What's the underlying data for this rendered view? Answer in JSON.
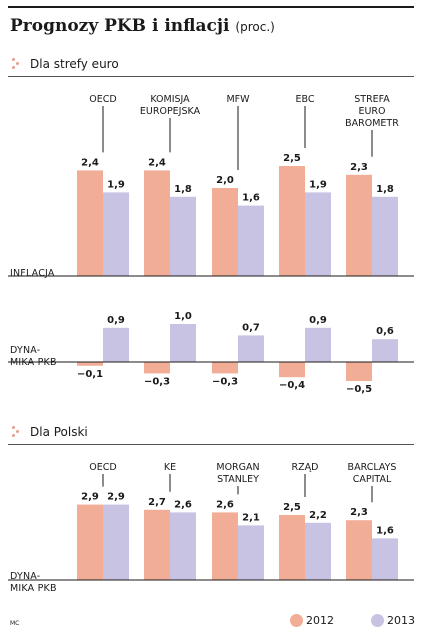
{
  "title": "Prognozy PKB i inflacji",
  "title_unit": "(proc.)",
  "colors": {
    "y2012": "#f2ad97",
    "y2013": "#c8c3e3",
    "marker": "#e3a08a"
  },
  "legend": [
    {
      "label": "2012",
      "color": "#f2ad97"
    },
    {
      "label": "2013",
      "color": "#c8c3e3"
    }
  ],
  "credit": "MC",
  "chart_data": [
    {
      "type": "bar",
      "section": "Dla strefy euro",
      "row_label": "INFLACJA",
      "categories": [
        "OECD",
        "KOMISJA EUROPEJSKA",
        "MFW",
        "EBC",
        "STREFA EURO BAROMETR"
      ],
      "category_lines": [
        [
          "OECD"
        ],
        [
          "KOMISJA",
          "EUROPEJSKA"
        ],
        [
          "MFW"
        ],
        [
          "EBC"
        ],
        [
          "STREFA",
          "EURO",
          "BAROMETR"
        ]
      ],
      "series": [
        {
          "name": "2012",
          "values": [
            2.4,
            2.4,
            2.0,
            2.5,
            2.3
          ]
        },
        {
          "name": "2013",
          "values": [
            1.9,
            1.8,
            1.6,
            1.9,
            1.8
          ]
        }
      ],
      "value_labels": [
        [
          "2,4",
          "2,4",
          "2,0",
          "2,5",
          "2,3"
        ],
        [
          "1,9",
          "1,8",
          "1,6",
          "1,9",
          "1,8"
        ]
      ]
    },
    {
      "type": "bar",
      "section": "Dla strefy euro",
      "row_label": [
        "DYNA-",
        "MIKA PKB"
      ],
      "categories": [
        "OECD",
        "KOMISJA EUROPEJSKA",
        "MFW",
        "EBC",
        "STREFA EURO BAROMETR"
      ],
      "series": [
        {
          "name": "2012",
          "values": [
            -0.1,
            -0.3,
            -0.3,
            -0.4,
            -0.5
          ]
        },
        {
          "name": "2013",
          "values": [
            0.9,
            1.0,
            0.7,
            0.9,
            0.6
          ]
        }
      ],
      "value_labels": [
        [
          "−0,1",
          "−0,3",
          "−0,3",
          "−0,4",
          "−0,5"
        ],
        [
          "0,9",
          "1,0",
          "0,7",
          "0,9",
          "0,6"
        ]
      ]
    },
    {
      "type": "bar",
      "section": "Dla Polski",
      "row_label": [
        "DYNA-",
        "MIKA PKB"
      ],
      "categories": [
        "OECD",
        "KE",
        "MORGAN STANLEY",
        "RZĄD",
        "BARCLAYS CAPITAL"
      ],
      "category_lines": [
        [
          "OECD"
        ],
        [
          "KE"
        ],
        [
          "MORGAN",
          "STANLEY"
        ],
        [
          "RZĄD"
        ],
        [
          "BARCLAYS",
          "CAPITAL"
        ]
      ],
      "series": [
        {
          "name": "2012",
          "values": [
            2.9,
            2.7,
            2.6,
            2.5,
            2.3
          ]
        },
        {
          "name": "2013",
          "values": [
            2.9,
            2.6,
            2.1,
            2.2,
            1.6
          ]
        }
      ],
      "value_labels": [
        [
          "2,9",
          "2,7",
          "2,6",
          "2,5",
          "2,3"
        ],
        [
          "2,9",
          "2,6",
          "2,1",
          "2,2",
          "1,6"
        ]
      ]
    }
  ]
}
